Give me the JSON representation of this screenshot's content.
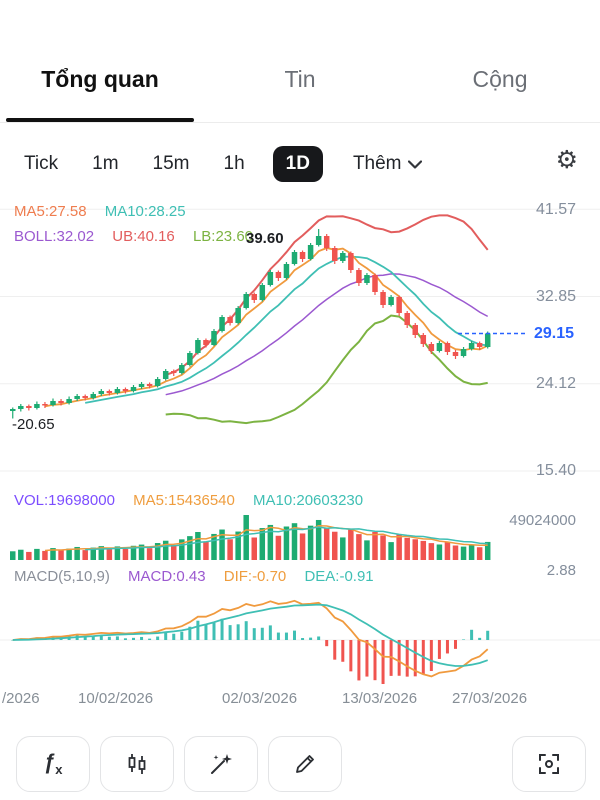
{
  "tabs": {
    "overview": "Tổng quan",
    "news": "Tin",
    "community": "Cộng"
  },
  "timeframes": {
    "tick": "Tick",
    "m1": "1m",
    "m15": "15m",
    "h1": "1h",
    "d1": "1D",
    "more": "Thêm"
  },
  "indicators": {
    "ma5": "MA5:27.58",
    "ma10": "MA10:28.25",
    "boll": "BOLL:32.02",
    "ub": "UB:40.16",
    "lb": "LB:23.60",
    "high_marker": "39.60",
    "low_marker": "-20.65",
    "vol": "VOL:19698000",
    "vol_ma5": "MA5:15436540",
    "vol_ma10": "MA10:20603230",
    "macd_params": "MACD(5,10,9)",
    "macd": "MACD:0.43",
    "dif": "DIF:-0.70",
    "dea": "DEA:-0.91"
  },
  "axis": {
    "price_labels": [
      "41.57",
      "32.85",
      "24.12",
      "15.40"
    ],
    "price_values": [
      41.57,
      32.85,
      24.12,
      15.4
    ],
    "current_price_label": "29.15",
    "vol_max_label": "49024000",
    "macd_max_label": "2.88",
    "dates": [
      "/2026",
      "10/02/2026",
      "02/03/2026",
      "13/03/2026",
      "27/03/2026"
    ]
  },
  "colors": {
    "up": "#1dab72",
    "down": "#f0544f",
    "ma5": "#f09a3e",
    "ma10": "#3fbfb4",
    "boll_mid": "#9b59d0",
    "boll_ub": "#e25d5d",
    "boll_lb": "#7cb342",
    "current_price": "#2962ff",
    "grid": "#efefef",
    "vol_ma5": "#f09a3e",
    "vol_ma10": "#3fbfb4",
    "macd_pos": "#3fbfb4",
    "macd_neg": "#f0544f"
  },
  "chart_data": {
    "type": "candlestick",
    "panes": [
      "price",
      "volume",
      "macd"
    ],
    "overlays": [
      "MA5",
      "MA10",
      "BOLL(20,2)"
    ],
    "price_gridlines": [
      41.57,
      32.85,
      24.12,
      15.4
    ],
    "current_price": 29.15,
    "high": 39.6,
    "low": 20.65,
    "volume_max": 49024000,
    "macd_axis_max": 2.88,
    "macd_last": 0.43,
    "dif_last": -0.7,
    "dea_last": -0.91,
    "ohlc": [
      [
        21.4,
        21.75,
        20.65,
        21.6
      ],
      [
        21.6,
        22.1,
        21.35,
        21.9
      ],
      [
        21.9,
        22.05,
        21.45,
        21.7
      ],
      [
        21.7,
        22.35,
        21.55,
        22.1
      ],
      [
        22.1,
        22.3,
        21.7,
        22.0
      ],
      [
        22.0,
        22.65,
        21.85,
        22.4
      ],
      [
        22.4,
        22.6,
        21.95,
        22.2
      ],
      [
        22.2,
        22.85,
        22.05,
        22.6
      ],
      [
        22.6,
        23.1,
        22.4,
        22.9
      ],
      [
        22.9,
        23.05,
        22.45,
        22.7
      ],
      [
        22.7,
        23.3,
        22.55,
        23.1
      ],
      [
        23.1,
        23.6,
        22.9,
        23.4
      ],
      [
        23.4,
        23.55,
        22.95,
        23.2
      ],
      [
        23.2,
        23.8,
        23.05,
        23.6
      ],
      [
        23.6,
        23.75,
        23.15,
        23.4
      ],
      [
        23.4,
        24.0,
        23.25,
        23.8
      ],
      [
        23.8,
        24.3,
        23.6,
        24.1
      ],
      [
        24.1,
        24.25,
        23.65,
        23.9
      ],
      [
        23.9,
        24.8,
        23.75,
        24.6
      ],
      [
        24.6,
        25.6,
        24.45,
        25.4
      ],
      [
        25.4,
        25.55,
        24.9,
        25.2
      ],
      [
        25.2,
        26.2,
        25.05,
        26.0
      ],
      [
        26.0,
        27.4,
        25.85,
        27.2
      ],
      [
        27.2,
        28.7,
        27.05,
        28.5
      ],
      [
        28.5,
        28.65,
        27.75,
        28.0
      ],
      [
        28.0,
        29.6,
        27.9,
        29.4
      ],
      [
        29.4,
        31.0,
        29.25,
        30.8
      ],
      [
        30.8,
        30.95,
        29.95,
        30.2
      ],
      [
        30.2,
        31.9,
        30.05,
        31.7
      ],
      [
        31.7,
        33.3,
        31.55,
        33.1
      ],
      [
        33.1,
        33.25,
        32.2,
        32.5
      ],
      [
        32.5,
        34.2,
        32.35,
        34.0
      ],
      [
        34.0,
        35.5,
        33.85,
        35.3
      ],
      [
        35.3,
        35.45,
        34.4,
        34.7
      ],
      [
        34.7,
        36.3,
        34.55,
        36.1
      ],
      [
        36.1,
        37.5,
        35.95,
        37.3
      ],
      [
        37.3,
        37.45,
        36.3,
        36.6
      ],
      [
        36.6,
        38.2,
        36.45,
        38.0
      ],
      [
        38.0,
        39.6,
        37.85,
        38.9
      ],
      [
        38.9,
        39.1,
        37.4,
        37.7
      ],
      [
        37.7,
        37.9,
        36.1,
        36.4
      ],
      [
        36.4,
        37.4,
        36.2,
        37.2
      ],
      [
        37.2,
        37.35,
        35.2,
        35.5
      ],
      [
        35.5,
        35.7,
        33.9,
        34.2
      ],
      [
        34.2,
        35.2,
        34.0,
        35.0
      ],
      [
        35.0,
        35.15,
        33.0,
        33.3
      ],
      [
        33.3,
        33.5,
        31.7,
        32.0
      ],
      [
        32.0,
        33.0,
        31.85,
        32.8
      ],
      [
        32.8,
        32.95,
        30.9,
        31.2
      ],
      [
        31.2,
        31.4,
        29.7,
        30.0
      ],
      [
        30.0,
        30.2,
        28.7,
        29.0
      ],
      [
        29.0,
        29.2,
        27.8,
        28.1
      ],
      [
        28.1,
        28.3,
        27.1,
        27.4
      ],
      [
        27.4,
        28.4,
        27.25,
        28.2
      ],
      [
        28.2,
        28.35,
        27.0,
        27.3
      ],
      [
        27.3,
        27.5,
        26.6,
        26.9
      ],
      [
        26.9,
        27.8,
        26.75,
        27.6
      ],
      [
        27.6,
        28.4,
        27.45,
        28.2
      ],
      [
        28.2,
        28.35,
        27.5,
        27.8
      ],
      [
        27.8,
        29.35,
        27.65,
        29.15
      ]
    ],
    "volumes_millions": [
      9.5,
      11.2,
      8.8,
      12.1,
      9.9,
      13.0,
      10.5,
      12.4,
      14.2,
      10.8,
      13.5,
      15.1,
      11.9,
      14.8,
      12.2,
      15.5,
      16.8,
      12.9,
      18.5,
      21.0,
      16.2,
      22.5,
      26.0,
      30.5,
      19.8,
      28.4,
      33.2,
      22.6,
      31.0,
      49.024,
      24.5,
      34.8,
      38.2,
      26.4,
      36.5,
      40.1,
      28.9,
      37.4,
      43.6,
      35.2,
      30.8,
      24.6,
      33.5,
      28.2,
      21.4,
      30.6,
      26.8,
      19.5,
      28.0,
      24.2,
      22.6,
      20.8,
      18.4,
      16.9,
      19.2,
      15.8,
      14.6,
      16.4,
      13.9,
      19.698
    ]
  },
  "toolbar": {
    "fx": "ƒ",
    "fx_sub": "x"
  }
}
